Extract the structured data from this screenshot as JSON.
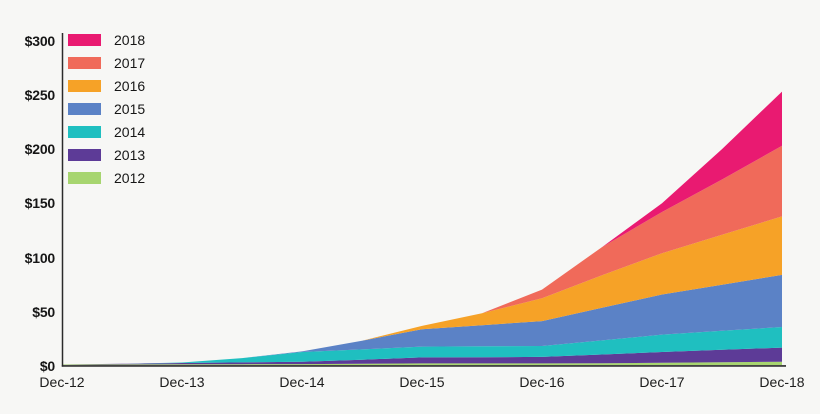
{
  "page": {
    "background": "#f7f7f5",
    "text_color": "#161616"
  },
  "chart_data": {
    "type": "area",
    "stacked": true,
    "grid": false,
    "legend_position": "top-left",
    "axis_color": "#2b2b2b",
    "categories": [
      "Dec-12",
      "Dec-13",
      "Dec-14",
      "Dec-15",
      "Dec-16",
      "Dec-17",
      "Dec-18"
    ],
    "category_x": [
      0,
      1,
      2,
      3,
      4,
      5,
      6
    ],
    "x": [
      0,
      0.5,
      1,
      1.5,
      2,
      2.5,
      3,
      3.5,
      4,
      4.5,
      5,
      5.5,
      6
    ],
    "ylim": [
      0,
      300
    ],
    "y_tick_values": [
      0,
      50,
      100,
      150,
      200,
      250,
      300
    ],
    "y_tick_labels": [
      "$0",
      "$50",
      "$100",
      "$150",
      "$200",
      "$250",
      "$300"
    ],
    "series": [
      {
        "name": "2018",
        "color": "#e91a71",
        "values_at_categories": [
          0,
          0,
          0,
          0,
          0,
          8,
          50
        ],
        "values_halfyear": [
          0,
          0,
          0,
          0,
          0,
          0,
          0,
          0,
          0,
          0,
          8,
          28,
          50
        ]
      },
      {
        "name": "2017",
        "color": "#f06a5a",
        "values_at_categories": [
          0,
          0,
          0,
          0,
          8,
          38,
          65
        ],
        "values_halfyear": [
          0,
          0,
          0,
          0,
          0,
          0,
          0,
          0,
          8,
          26,
          38,
          51,
          65
        ]
      },
      {
        "name": "2016",
        "color": "#f6a227",
        "values_at_categories": [
          0,
          0,
          0,
          3,
          21,
          38,
          54
        ],
        "values_halfyear": [
          0,
          0,
          0,
          0,
          0,
          0,
          3,
          11,
          21,
          30,
          38,
          46,
          54
        ]
      },
      {
        "name": "2015",
        "color": "#5b82c6",
        "values_at_categories": [
          0,
          0,
          0.5,
          16,
          23,
          37,
          48
        ],
        "values_halfyear": [
          0,
          0,
          0,
          0,
          0.5,
          8,
          16,
          19.5,
          23,
          30,
          37,
          42.5,
          48
        ]
      },
      {
        "name": "2014",
        "color": "#1fbfc0",
        "values_at_categories": [
          0,
          0.5,
          9,
          10,
          10,
          16,
          19
        ],
        "values_halfyear": [
          0,
          0,
          0.5,
          4,
          9,
          9.5,
          10,
          10,
          10,
          13,
          16,
          17.5,
          19
        ]
      },
      {
        "name": "2013",
        "color": "#5d3b97",
        "values_at_categories": [
          0,
          1.2,
          2.2,
          5.5,
          6,
          10,
          13
        ],
        "values_halfyear": [
          0,
          0.6,
          1.2,
          1.7,
          2.2,
          3.8,
          5.5,
          5.7,
          6,
          8,
          10,
          11.5,
          13
        ]
      },
      {
        "name": "2012",
        "color": "#a7d56f",
        "values_at_categories": [
          0.5,
          0.6,
          0.8,
          1.5,
          1.5,
          2,
          3
        ],
        "values_halfyear": [
          0.5,
          0.55,
          0.6,
          0.7,
          0.8,
          1.1,
          1.5,
          1.5,
          1.5,
          1.7,
          2,
          2.5,
          3
        ]
      }
    ]
  }
}
